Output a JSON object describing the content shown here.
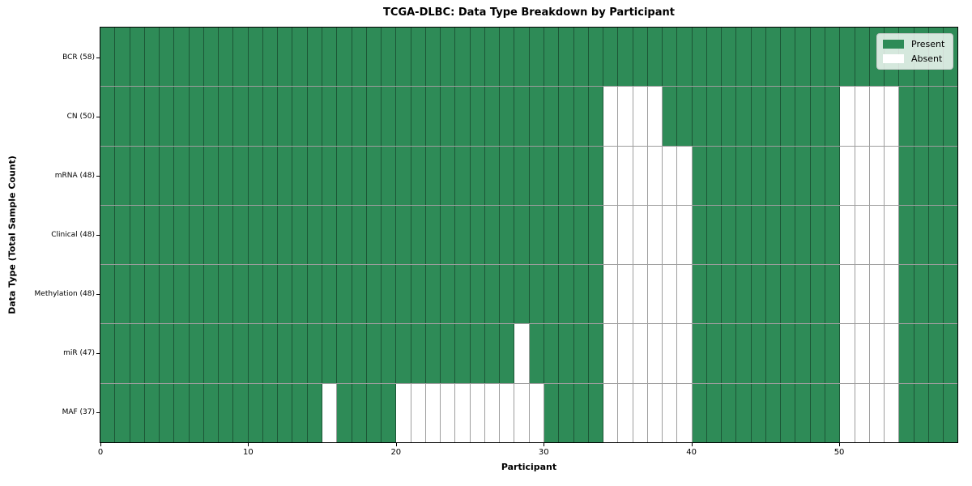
{
  "chart_data": {
    "type": "heatmap",
    "title": "TCGA-DLBC: Data Type Breakdown by Participant",
    "xlabel": "Participant",
    "ylabel": "Data Type (Total Sample Count)",
    "x_range": [
      0,
      58
    ],
    "n_participants": 58,
    "x_ticks": [
      0,
      10,
      20,
      30,
      40,
      50
    ],
    "grid": true,
    "legend_position": "upper right",
    "colors": {
      "present": "#2e8b57",
      "absent": "#ffffff",
      "grid_line": "rgba(0,0,0,0.38)",
      "spine": "#000000",
      "legend_border": "#cccccc"
    },
    "legend": [
      {
        "key": "present",
        "label": "Present"
      },
      {
        "key": "absent",
        "label": "Absent"
      }
    ],
    "rows": [
      {
        "label": "BCR (58)",
        "present_count": 58,
        "absent_cols": []
      },
      {
        "label": "CN (50)",
        "present_count": 50,
        "absent_cols": [
          34,
          35,
          36,
          37,
          50,
          51,
          52,
          53
        ]
      },
      {
        "label": "mRNA (48)",
        "present_count": 48,
        "absent_cols": [
          34,
          35,
          36,
          37,
          38,
          39,
          50,
          51,
          52,
          53
        ]
      },
      {
        "label": "Clinical (48)",
        "present_count": 48,
        "absent_cols": [
          34,
          35,
          36,
          37,
          38,
          39,
          50,
          51,
          52,
          53
        ]
      },
      {
        "label": "Methylation (48)",
        "present_count": 48,
        "absent_cols": [
          34,
          35,
          36,
          37,
          38,
          39,
          50,
          51,
          52,
          53
        ]
      },
      {
        "label": "miR (47)",
        "present_count": 47,
        "absent_cols": [
          28,
          34,
          35,
          36,
          37,
          38,
          39,
          50,
          51,
          52,
          53
        ]
      },
      {
        "label": "MAF (37)",
        "present_count": 37,
        "absent_cols": [
          15,
          20,
          21,
          22,
          23,
          24,
          25,
          26,
          27,
          28,
          29,
          34,
          35,
          36,
          37,
          38,
          39,
          50,
          51,
          52,
          53
        ]
      }
    ]
  }
}
